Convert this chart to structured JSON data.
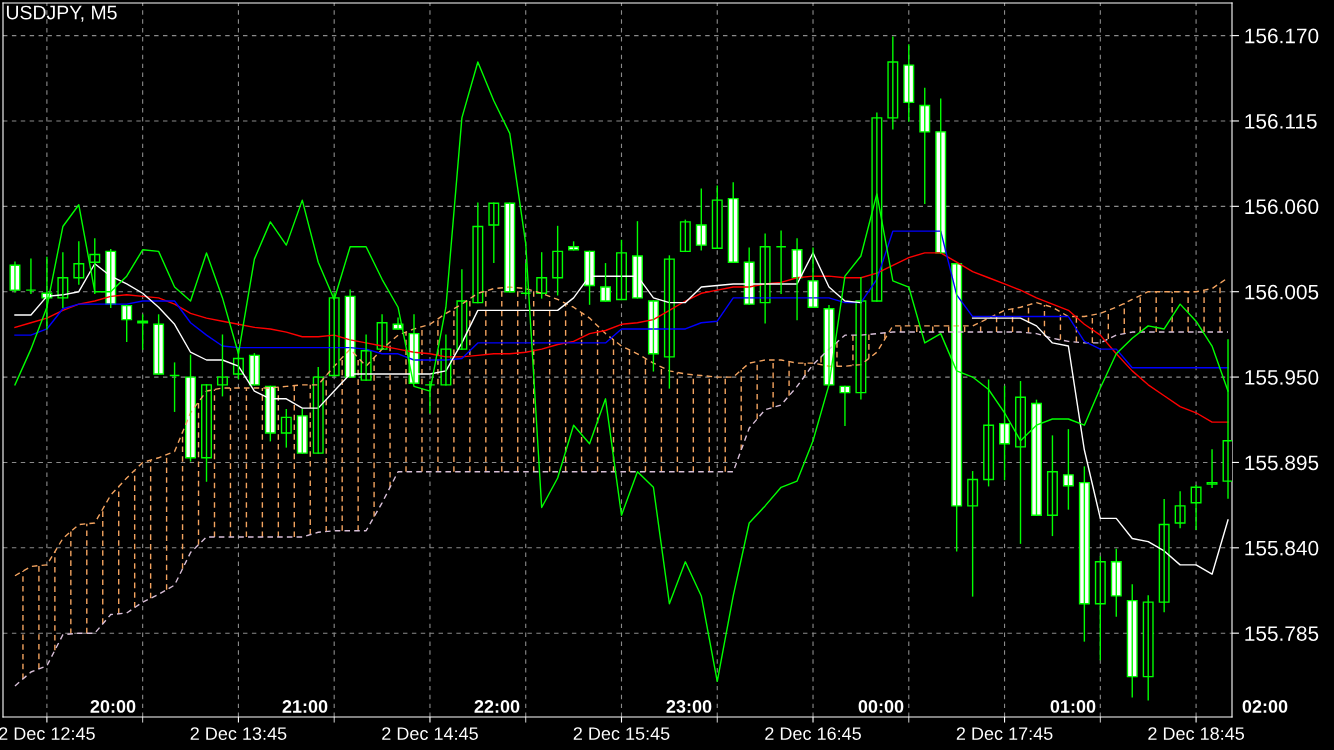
{
  "chart_data": {
    "type": "candlestick",
    "title": "USDJPY, M5",
    "annotations": [
      "20:00",
      "21:00",
      "22:00",
      "23:00",
      "00:00",
      "01:00",
      "02:00"
    ],
    "categories": [
      null,
      null,
      "2 Dec 12:45",
      null,
      null,
      null,
      null,
      null,
      null,
      null,
      null,
      null,
      null,
      null,
      "2 Dec 13:45",
      null,
      null,
      null,
      null,
      null,
      null,
      null,
      null,
      null,
      null,
      null,
      "2 Dec 14:45",
      null,
      null,
      null,
      null,
      null,
      null,
      null,
      null,
      null,
      null,
      null,
      "2 Dec 15:45",
      null,
      null,
      null,
      null,
      null,
      null,
      null,
      null,
      null,
      null,
      null,
      "2 Dec 16:45",
      null,
      null,
      null,
      null,
      null,
      null,
      null,
      null,
      null,
      null,
      null,
      "2 Dec 17:45",
      null,
      null,
      null,
      null,
      null,
      null,
      null,
      null,
      null,
      null,
      null,
      "2 Dec 18:45",
      null,
      null
    ],
    "ohlc": [
      [
        156.022,
        156.024,
        156.005,
        156.006
      ],
      [
        156.006,
        156.026,
        156.004,
        156.006
      ],
      [
        156.004,
        156.027,
        155.981,
        156.001
      ],
      [
        156.001,
        156.03,
        155.995,
        156.014
      ],
      [
        156.014,
        156.037,
        156.01,
        156.023
      ],
      [
        156.024,
        156.039,
        156.004,
        156.029
      ],
      [
        156.031,
        156.032,
        155.995,
        155.997
      ],
      [
        155.996,
        155.996,
        155.973,
        155.987
      ],
      [
        155.986,
        155.99,
        155.968,
        155.985
      ],
      [
        155.984,
        155.99,
        155.952,
        155.952
      ],
      [
        155.951,
        155.959,
        155.928,
        155.951
      ],
      [
        155.95,
        155.964,
        155.896,
        155.898
      ],
      [
        155.898,
        155.945,
        155.883,
        155.945
      ],
      [
        155.945,
        155.977,
        155.938,
        155.95
      ],
      [
        155.952,
        155.966,
        155.949,
        155.962
      ],
      [
        155.964,
        155.965,
        155.945,
        155.945
      ],
      [
        155.944,
        155.944,
        155.909,
        155.914
      ],
      [
        155.914,
        155.929,
        155.905,
        155.924
      ],
      [
        155.925,
        155.929,
        155.901,
        155.901
      ],
      [
        155.901,
        155.956,
        155.901,
        155.95
      ],
      [
        155.951,
        156.004,
        155.951,
        156.001
      ],
      [
        156.002,
        156.006,
        155.95,
        155.95
      ],
      [
        155.948,
        155.977,
        155.948,
        155.967
      ],
      [
        155.968,
        155.99,
        155.968,
        155.985
      ],
      [
        155.984,
        155.988,
        155.981,
        155.981
      ],
      [
        155.978,
        155.99,
        155.946,
        155.946
      ],
      [
        155.945,
        155.947,
        155.927,
        155.945
      ],
      [
        155.945,
        155.977,
        155.945,
        155.968
      ],
      [
        155.968,
        156.019,
        155.968,
        155.999
      ],
      [
        155.998,
        156.062,
        155.998,
        156.047
      ],
      [
        156.048,
        156.062,
        156.024,
        156.062
      ],
      [
        156.062,
        156.062,
        156.005,
        156.005
      ],
      [
        156.004,
        156.023,
        156.003,
        156.004
      ],
      [
        156.004,
        156.03,
        156.001,
        156.014
      ],
      [
        156.014,
        156.047,
        156.003,
        156.031
      ],
      [
        156.034,
        156.037,
        156.032,
        156.032
      ],
      [
        156.031,
        156.031,
        155.997,
        156.009
      ],
      [
        156.008,
        156.023,
        155.999,
        155.999
      ],
      [
        156.0,
        156.038,
        156.0,
        156.03
      ],
      [
        156.028,
        156.05,
        156.001,
        156.001
      ],
      [
        155.999,
        155.999,
        155.954,
        155.965
      ],
      [
        155.963,
        156.028,
        155.943,
        156.026
      ],
      [
        156.031,
        156.051,
        156.031,
        156.05
      ],
      [
        156.048,
        156.071,
        156.032,
        156.035
      ],
      [
        156.033,
        156.073,
        156.033,
        156.064
      ],
      [
        156.065,
        156.075,
        156.024,
        156.024
      ],
      [
        156.024,
        156.033,
        155.997,
        155.997
      ],
      [
        155.998,
        156.042,
        155.985,
        156.034
      ],
      [
        156.034,
        156.044,
        156.004,
        156.034
      ],
      [
        156.032,
        156.039,
        155.987,
        156.014
      ],
      [
        156.012,
        156.033,
        155.995,
        155.995
      ],
      [
        155.994,
        155.996,
        155.945,
        155.945
      ],
      [
        155.944,
        155.944,
        155.919,
        155.94
      ],
      [
        155.94,
        156.014,
        155.936,
        155.999
      ],
      [
        155.999,
        156.12,
        155.999,
        156.117
      ],
      [
        156.117,
        156.169,
        156.11,
        156.153
      ],
      [
        156.151,
        156.164,
        156.115,
        156.127
      ],
      [
        156.125,
        156.136,
        156.062,
        156.108
      ],
      [
        156.108,
        156.129,
        156.03,
        156.03
      ],
      [
        156.023,
        156.023,
        155.838,
        155.867
      ],
      [
        155.867,
        155.889,
        155.809,
        155.884
      ],
      [
        155.884,
        155.948,
        155.88,
        155.919
      ],
      [
        155.92,
        155.944,
        155.884,
        155.907
      ],
      [
        155.905,
        155.947,
        155.843,
        155.937
      ],
      [
        155.933,
        155.935,
        155.861,
        155.861
      ],
      [
        155.861,
        155.912,
        155.848,
        155.889
      ],
      [
        155.887,
        155.916,
        155.865,
        155.88
      ],
      [
        155.882,
        155.892,
        155.78,
        155.804
      ],
      [
        155.804,
        155.834,
        155.768,
        155.831
      ],
      [
        155.831,
        155.839,
        155.796,
        155.809
      ],
      [
        155.806,
        155.816,
        155.744,
        155.757
      ],
      [
        155.757,
        155.809,
        155.742,
        155.805
      ],
      [
        155.805,
        155.871,
        155.799,
        155.855
      ],
      [
        155.856,
        155.876,
        155.853,
        155.867
      ],
      [
        155.869,
        155.88,
        155.852,
        155.879
      ],
      [
        155.881,
        155.903,
        155.879,
        155.882
      ],
      [
        155.883,
        155.974,
        155.872,
        155.909
      ]
    ],
    "color": "#00ff00",
    "colors": [
      "#ffffff",
      "#00ff00",
      "#ffffff",
      "#000000",
      "#000000",
      "#000000",
      "#ffffff",
      "#ffffff",
      "#ffffff",
      "#ffffff",
      "#00ff00",
      "#ffffff",
      "#000000",
      "#000000",
      "#000000",
      "#ffffff",
      "#ffffff",
      "#000000",
      "#ffffff",
      "#000000",
      "#000000",
      "#ffffff",
      "#000000",
      "#000000",
      "#ffffff",
      "#ffffff",
      "#00ff00",
      "#000000",
      "#000000",
      "#000000",
      "#000000",
      "#ffffff",
      "#00ff00",
      "#000000",
      "#000000",
      "#ffffff",
      "#ffffff",
      "#ffffff",
      "#000000",
      "#ffffff",
      "#ffffff",
      "#000000",
      "#000000",
      "#ffffff",
      "#000000",
      "#ffffff",
      "#ffffff",
      "#000000",
      "#00ff00",
      "#ffffff",
      "#ffffff",
      "#ffffff",
      "#ffffff",
      "#000000",
      "#000000",
      "#000000",
      "#ffffff",
      "#ffffff",
      "#ffffff",
      "#ffffff",
      "#000000",
      "#000000",
      "#ffffff",
      "#000000",
      "#ffffff",
      "#000000",
      "#ffffff",
      "#ffffff",
      "#000000",
      "#ffffff",
      "#ffffff",
      "#000000",
      "#000000",
      "#000000",
      "#000000",
      "#000000",
      "#000000"
    ],
    "series": [
      {
        "type": "line",
        "color": "#f4a460",
        "values": [
          155.822,
          155.828,
          155.829,
          155.846,
          155.855,
          155.856,
          155.874,
          155.885,
          155.895,
          155.898,
          155.902,
          155.927,
          155.941,
          155.943,
          155.943,
          155.943,
          155.943,
          155.944,
          155.945,
          155.945,
          155.957,
          155.968,
          155.957,
          155.968,
          155.977,
          155.981,
          155.984,
          155.991,
          155.997,
          156.004,
          156.007,
          156.008,
          156.007,
          156.004,
          156.0,
          155.995,
          155.988,
          155.978,
          155.97,
          155.965,
          155.959,
          155.954,
          155.952,
          155.951,
          155.95,
          155.95,
          155.959,
          155.961,
          155.961,
          155.959,
          155.959,
          155.957,
          155.957,
          155.958,
          155.966,
          155.983,
          155.983,
          155.983,
          155.983,
          155.983,
          155.983,
          155.988,
          155.993,
          155.995,
          155.998,
          155.995,
          155.989,
          155.989,
          155.991,
          155.995,
          156.0,
          156.005,
          156.005,
          156.005,
          156.005,
          156.007,
          156.014
        ],
        "line_style": "dashed"
      },
      {
        "type": "line",
        "color": "#d8bfd8",
        "line_style": "dashed",
        "values": [
          155.751,
          155.76,
          155.764,
          155.784,
          155.785,
          155.785,
          155.797,
          155.798,
          155.805,
          155.81,
          155.816,
          155.837,
          155.847,
          155.847,
          155.847,
          155.847,
          155.847,
          155.847,
          155.847,
          155.85,
          155.851,
          155.851,
          155.851,
          155.869,
          155.889,
          155.889,
          155.889,
          155.889,
          155.889,
          155.889,
          155.889,
          155.889,
          155.889,
          155.889,
          155.889,
          155.889,
          155.889,
          155.889,
          155.889,
          155.889,
          155.889,
          155.889,
          155.889,
          155.889,
          155.889,
          155.889,
          155.917,
          155.929,
          155.932,
          155.944,
          155.958,
          155.968,
          155.977,
          155.977,
          155.978,
          155.979,
          155.979,
          155.979,
          155.979,
          155.979,
          155.979,
          155.979,
          155.979,
          155.979,
          155.978,
          155.975,
          155.973,
          155.972,
          155.972,
          155.977,
          155.979,
          155.979,
          155.979,
          155.979,
          155.979,
          155.979,
          155.979
        ]
      },
      {
        "type": "line",
        "color": "#ff0000",
        "values": [
          155.982,
          155.985,
          155.988,
          155.993,
          155.997,
          155.999,
          156.002,
          156.003,
          156.002,
          156.001,
          155.997,
          155.991,
          155.988,
          155.986,
          155.984,
          155.982,
          155.981,
          155.979,
          155.976,
          155.976,
          155.977,
          155.974,
          155.972,
          155.97,
          155.968,
          155.966,
          155.965,
          155.963,
          155.963,
          155.964,
          155.965,
          155.965,
          155.966,
          155.968,
          155.971,
          155.973,
          155.978,
          155.98,
          155.984,
          155.985,
          155.987,
          155.993,
          155.999,
          156.004,
          156.006,
          156.008,
          156.008,
          156.01,
          156.011,
          156.014,
          156.015,
          156.015,
          156.014,
          156.014,
          156.017,
          156.022,
          156.027,
          156.03,
          156.03,
          156.024,
          156.018,
          156.014,
          156.01,
          156.006,
          156.001,
          155.997,
          155.993,
          155.984,
          155.977,
          155.965,
          155.954,
          155.945,
          155.938,
          155.931,
          155.927,
          155.921,
          155.921
        ]
      },
      {
        "type": "line",
        "color": "#0000ff",
        "values": [
          155.977,
          155.977,
          155.981,
          155.994,
          155.997,
          155.997,
          155.997,
          155.997,
          155.999,
          155.999,
          155.999,
          155.985,
          155.977,
          155.97,
          155.969,
          155.969,
          155.969,
          155.969,
          155.969,
          155.969,
          155.969,
          155.969,
          155.968,
          155.965,
          155.965,
          155.961,
          155.961,
          155.961,
          155.962,
          155.972,
          155.972,
          155.972,
          155.972,
          155.972,
          155.972,
          155.972,
          155.972,
          155.972,
          155.981,
          155.981,
          155.981,
          155.981,
          155.981,
          155.985,
          155.986,
          156.001,
          156.001,
          156.001,
          156.001,
          156.001,
          156.001,
          156.001,
          155.998,
          155.998,
          156.013,
          156.044,
          156.044,
          156.044,
          156.044,
          156.003,
          155.989,
          155.989,
          155.989,
          155.989,
          155.989,
          155.989,
          155.989,
          155.973,
          155.968,
          155.968,
          155.956,
          155.956,
          155.956,
          155.956,
          155.956,
          155.956,
          155.956
        ]
      },
      {
        "type": "line",
        "color": "#ffffff",
        "values": [
          155.99,
          155.99,
          156.002,
          156.003,
          156.005,
          156.023,
          156.015,
          156.01,
          156.004,
          155.995,
          155.984,
          155.966,
          155.961,
          155.961,
          155.957,
          155.941,
          155.936,
          155.936,
          155.93,
          155.93,
          155.941,
          155.952,
          155.952,
          155.952,
          155.952,
          155.952,
          155.952,
          155.954,
          155.972,
          155.993,
          155.993,
          155.993,
          155.993,
          155.993,
          155.993,
          156.001,
          156.015,
          156.015,
          156.015,
          156.015,
          156.001,
          155.998,
          155.998,
          156.008,
          156.009,
          156.01,
          156.01,
          156.01,
          156.01,
          156.01,
          156.03,
          156.008,
          155.999,
          155.998,
          null,
          null,
          null,
          null,
          null,
          null,
          155.988,
          155.988,
          155.988,
          155.988,
          155.983,
          155.972,
          155.97,
          155.903,
          155.859,
          155.859,
          155.846,
          155.844,
          155.838,
          155.829,
          155.829,
          155.823,
          155.858
        ]
      },
      {
        "type": "line",
        "color": "#00ff00",
        "values": [
          155.945,
          155.968,
          155.995,
          156.047,
          156.061,
          156.005,
          156.005,
          156.015,
          156.032,
          156.031,
          156.008,
          155.999,
          156.03,
          156.001,
          155.965,
          156.026,
          156.05,
          156.035,
          156.064,
          156.024,
          156.0,
          156.034,
          156.034,
          156.013,
          155.995,
          155.944,
          155.941,
          155.995,
          156.117,
          156.153,
          156.128,
          156.107,
          156.036,
          155.866,
          155.885,
          155.919,
          155.907,
          155.936,
          155.861,
          155.889,
          155.879,
          155.804,
          155.831,
          155.809,
          155.754,
          155.809,
          155.856,
          155.867,
          155.879,
          155.883,
          155.909,
          155.945,
          156.015,
          156.028,
          156.068,
          156.012,
          156.008,
          155.972,
          155.978,
          155.954,
          155.95,
          155.942,
          155.927,
          155.909,
          155.919,
          155.923,
          155.923,
          155.919,
          155.943,
          155.965,
          155.975,
          155.983,
          155.981,
          155.997,
          155.986,
          155.97,
          155.941
        ]
      }
    ],
    "ylim": [
      155.731,
      156.191
    ],
    "yticks": [
      {
        "value": 156.17,
        "label": "156.170"
      },
      156.115,
      {
        "value": 156.06,
        "label": "156.060"
      },
      156.005,
      {
        "value": 155.95,
        "label": "155.950"
      },
      155.895,
      {
        "value": 155.84,
        "label": "155.840"
      },
      155.785
    ],
    "grid": true
  }
}
